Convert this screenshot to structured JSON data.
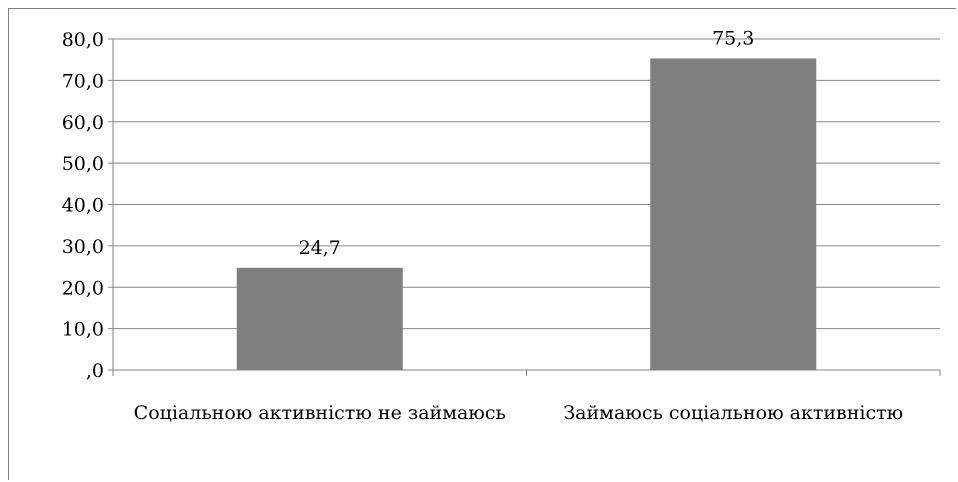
{
  "chart_data": {
    "type": "bar",
    "categories": [
      "Соціальною активністю не займаюсь",
      "Займаюсь соціальною активністю"
    ],
    "values": [
      24.7,
      75.3
    ],
    "value_labels": [
      "24,7",
      "75,3"
    ],
    "y_ticks": [
      ",0",
      "10,0",
      "20,0",
      "30,0",
      "40,0",
      "50,0",
      "60,0",
      "70,0",
      "80,0"
    ],
    "ylim": [
      0,
      80
    ],
    "grid": true,
    "legend": "none",
    "bar_color": "#7f7f7f",
    "gridline_color": "#868686"
  }
}
